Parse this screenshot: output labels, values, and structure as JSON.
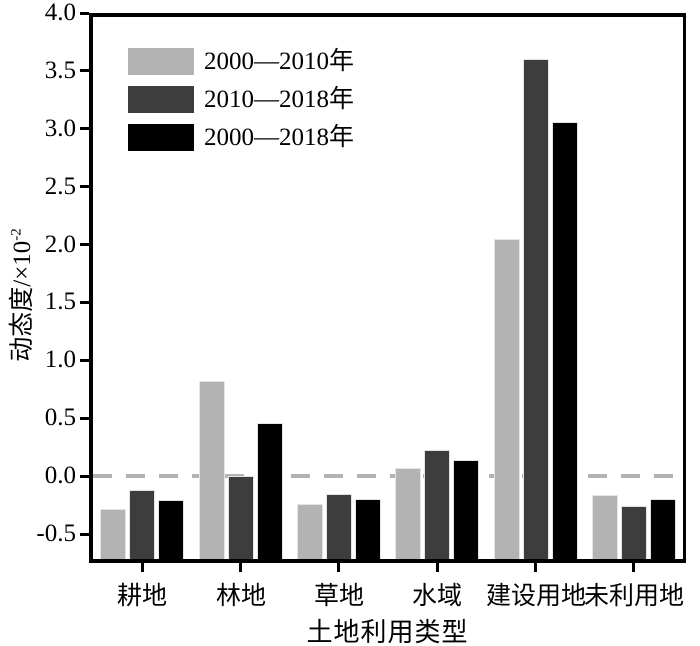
{
  "chart_data": {
    "type": "bar",
    "categories": [
      "耕地",
      "林地",
      "草地",
      "水域",
      "建设用地",
      "未利用地"
    ],
    "series": [
      {
        "name": "2000—2010年",
        "color": "#b3b3b3",
        "values": [
          -0.28,
          0.82,
          -0.24,
          0.07,
          2.05,
          -0.16
        ]
      },
      {
        "name": "2010—2018年",
        "color": "#3d3d3d",
        "values": [
          -0.12,
          0.0,
          -0.15,
          0.23,
          3.6,
          -0.26
        ]
      },
      {
        "name": "2000—2018年",
        "color": "#000000",
        "values": [
          -0.21,
          0.46,
          -0.2,
          0.14,
          3.06,
          -0.2
        ]
      }
    ],
    "xlabel": "土地利用类型",
    "ylabel": "动态度/×10⁻²",
    "ylabel_parts": {
      "base": "动态度/×10",
      "exponent": "-2"
    },
    "ylim": [
      -0.75,
      4.0
    ],
    "yticks": [
      4.0,
      3.5,
      3.0,
      2.5,
      2.0,
      1.5,
      1.0,
      0.5,
      0.0,
      -0.5
    ],
    "ytick_labels": [
      "4.0",
      "3.5",
      "3.0",
      "2.5",
      "2.0",
      "1.5",
      "1.0",
      "0.5",
      "0.0",
      "-0.5"
    ],
    "zero_line": {
      "value": 0.0,
      "style": "dashed",
      "color": "#b3b3b3"
    },
    "legend_position": "top-left",
    "grid": false,
    "bar_base": "plot_bottom",
    "axis_color": "#000000"
  }
}
